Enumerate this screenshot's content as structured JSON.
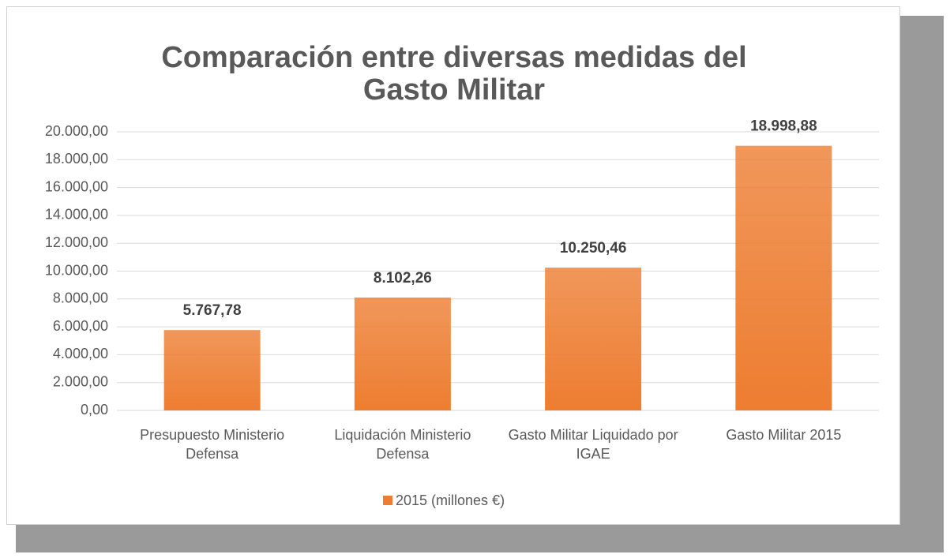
{
  "chart_data": {
    "type": "bar",
    "title": [
      "Comparación entre diversas medidas del",
      "Gasto Militar"
    ],
    "categories": [
      "Presupuesto Ministerio Defensa",
      "Liquidación Ministerio Defensa",
      "Gasto Militar Liquidado por IGAE",
      "Gasto Militar 2015"
    ],
    "series": [
      {
        "name": "2015 (millones €)",
        "color": "#ed7d31",
        "values": [
          5767.78,
          8102.26,
          10250.46,
          18998.88
        ],
        "value_labels": [
          "5.767,78",
          "8.102,26",
          "10.250,46",
          "18.998,88"
        ]
      }
    ],
    "ylim": [
      0,
      20000
    ],
    "yticks": [
      {
        "value": 0,
        "label": "0,00"
      },
      {
        "value": 2000,
        "label": "2.000,00"
      },
      {
        "value": 4000,
        "label": "4.000,00"
      },
      {
        "value": 6000,
        "label": "6.000,00"
      },
      {
        "value": 8000,
        "label": "8.000,00"
      },
      {
        "value": 10000,
        "label": "10.000,00"
      },
      {
        "value": 12000,
        "label": "12.000,00"
      },
      {
        "value": 14000,
        "label": "14.000,00"
      },
      {
        "value": 16000,
        "label": "16.000,00"
      },
      {
        "value": 18000,
        "label": "18.000,00"
      },
      {
        "value": 20000,
        "label": "20.000,00"
      }
    ],
    "grid": true,
    "legend": "bottom"
  }
}
